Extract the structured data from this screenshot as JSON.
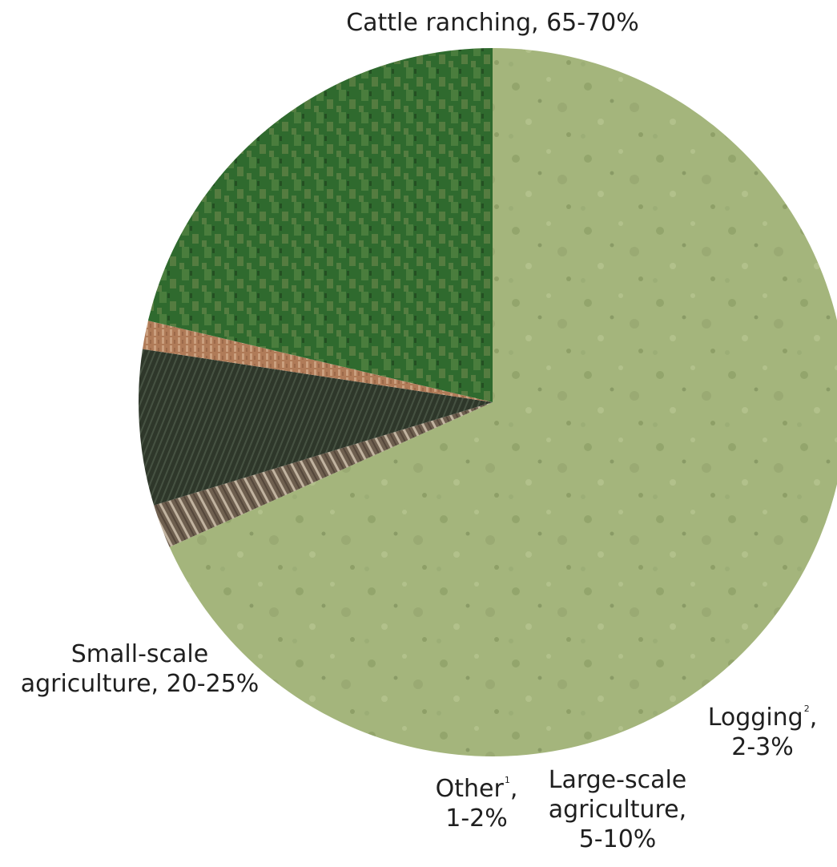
{
  "chart_data": {
    "type": "pie",
    "title": "",
    "units": "%",
    "slices": [
      {
        "key": "cattle",
        "label": "Cattle ranching, 65-70%",
        "range": [
          65,
          70
        ],
        "value": 68.3,
        "texture": "pasture",
        "color": "#a4b57c"
      },
      {
        "key": "logging",
        "label_main": "Logging",
        "footnote": "2",
        "label_pct": "2-3%",
        "range": [
          2,
          3
        ],
        "value": 2.0,
        "texture": "logging",
        "color": "#6f6050"
      },
      {
        "key": "large",
        "label_line1": "Large-scale",
        "label_line2": "agriculture,",
        "label_line3": "5-10%",
        "range": [
          5,
          10
        ],
        "value": 7.1,
        "texture": "cropland",
        "color": "#2f3a2a"
      },
      {
        "key": "other",
        "label_main": "Other",
        "footnote": "1",
        "label_pct": "1-2%",
        "range": [
          1,
          2
        ],
        "value": 1.3,
        "texture": "bare-soil",
        "color": "#b07b58"
      },
      {
        "key": "small",
        "label_line1": "Small-scale",
        "label_line2": "agriculture, 20-25%",
        "range": [
          20,
          25
        ],
        "value": 21.3,
        "texture": "plantation",
        "color": "#2f6a2e"
      }
    ]
  }
}
